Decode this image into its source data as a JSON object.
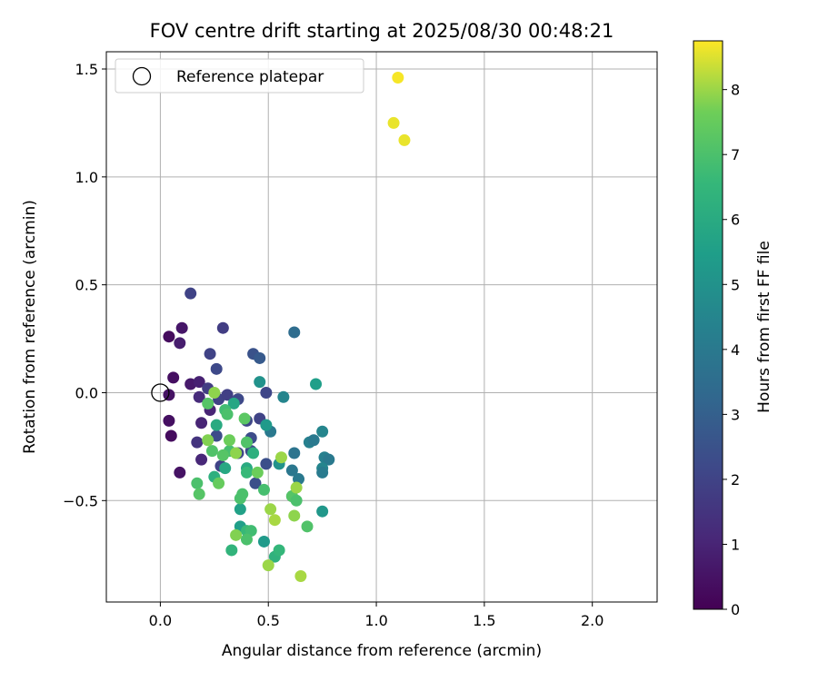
{
  "chart_data": {
    "type": "scatter",
    "title": "FOV centre drift starting at 2025/08/30 00:48:21",
    "xlabel": "Angular distance from reference (arcmin)",
    "ylabel": "Rotation from reference (arcmin)",
    "xlim": [
      -0.25,
      2.3
    ],
    "ylim": [
      -0.97,
      1.58
    ],
    "xticks": [
      0.0,
      0.5,
      1.0,
      1.5,
      2.0
    ],
    "xtick_labels": [
      "0.0",
      "0.5",
      "1.0",
      "1.5",
      "2.0"
    ],
    "yticks": [
      -0.5,
      0.0,
      0.5,
      1.0,
      1.5
    ],
    "ytick_labels": [
      "−0.5",
      "0.0",
      "0.5",
      "1.0",
      "1.5"
    ],
    "grid": true,
    "legend": {
      "position": "upper-left",
      "entries": [
        "Reference platepar"
      ]
    },
    "reference_point": {
      "x": 0.0,
      "y": 0.0,
      "marker": "open-circle",
      "label": "Reference platepar"
    },
    "colorbar": {
      "label": "Hours from first FF file",
      "range": [
        0,
        8.75
      ],
      "ticks": [
        0,
        1,
        2,
        3,
        4,
        5,
        6,
        7,
        8
      ],
      "tick_labels": [
        "0",
        "1",
        "2",
        "3",
        "4",
        "5",
        "6",
        "7",
        "8"
      ],
      "colormap": "viridis"
    },
    "points": [
      {
        "x": 0.04,
        "y": 0.26,
        "c": 0.3
      },
      {
        "x": 0.06,
        "y": 0.07,
        "c": 0.4
      },
      {
        "x": 0.04,
        "y": -0.01,
        "c": 0.5
      },
      {
        "x": 0.04,
        "y": -0.13,
        "c": 0.4
      },
      {
        "x": 0.05,
        "y": -0.2,
        "c": 0.3
      },
      {
        "x": 0.09,
        "y": -0.37,
        "c": 0.5
      },
      {
        "x": 0.1,
        "y": 0.3,
        "c": 0.6
      },
      {
        "x": 0.09,
        "y": 0.23,
        "c": 0.8
      },
      {
        "x": 0.14,
        "y": 0.04,
        "c": 0.7
      },
      {
        "x": 0.18,
        "y": 0.05,
        "c": 0.9
      },
      {
        "x": 0.18,
        "y": -0.02,
        "c": 1.2
      },
      {
        "x": 0.19,
        "y": -0.14,
        "c": 1.0
      },
      {
        "x": 0.19,
        "y": -0.31,
        "c": 1.1
      },
      {
        "x": 0.17,
        "y": -0.23,
        "c": 1.5
      },
      {
        "x": 0.23,
        "y": -0.08,
        "c": 1.0
      },
      {
        "x": 0.22,
        "y": 0.02,
        "c": 1.8
      },
      {
        "x": 0.14,
        "y": 0.46,
        "c": 2.0
      },
      {
        "x": 0.23,
        "y": 0.18,
        "c": 2.0
      },
      {
        "x": 0.26,
        "y": 0.11,
        "c": 2.2
      },
      {
        "x": 0.29,
        "y": 0.3,
        "c": 1.8
      },
      {
        "x": 0.27,
        "y": -0.03,
        "c": 2.0
      },
      {
        "x": 0.31,
        "y": -0.01,
        "c": 1.9
      },
      {
        "x": 0.36,
        "y": -0.03,
        "c": 2.2
      },
      {
        "x": 0.26,
        "y": -0.2,
        "c": 2.3
      },
      {
        "x": 0.28,
        "y": -0.34,
        "c": 2.0
      },
      {
        "x": 0.36,
        "y": -0.28,
        "c": 2.1
      },
      {
        "x": 0.4,
        "y": -0.13,
        "c": 2.1
      },
      {
        "x": 0.42,
        "y": -0.21,
        "c": 2.3
      },
      {
        "x": 0.43,
        "y": 0.18,
        "c": 2.5
      },
      {
        "x": 0.46,
        "y": 0.16,
        "c": 2.8
      },
      {
        "x": 0.49,
        "y": 0.0,
        "c": 2.1
      },
      {
        "x": 0.46,
        "y": -0.12,
        "c": 2.0
      },
      {
        "x": 0.49,
        "y": -0.33,
        "c": 2.4
      },
      {
        "x": 0.44,
        "y": -0.42,
        "c": 2.4
      },
      {
        "x": 0.42,
        "y": -0.27,
        "c": 2.2
      },
      {
        "x": 0.62,
        "y": 0.28,
        "c": 3.5
      },
      {
        "x": 0.57,
        "y": -0.02,
        "c": 4.5
      },
      {
        "x": 0.51,
        "y": -0.18,
        "c": 4.0
      },
      {
        "x": 0.62,
        "y": -0.28,
        "c": 3.8
      },
      {
        "x": 0.61,
        "y": -0.36,
        "c": 3.9
      },
      {
        "x": 0.64,
        "y": -0.4,
        "c": 4.0
      },
      {
        "x": 0.61,
        "y": -0.48,
        "c": 3.7
      },
      {
        "x": 0.69,
        "y": -0.23,
        "c": 4.3
      },
      {
        "x": 0.71,
        "y": -0.22,
        "c": 4.0
      },
      {
        "x": 0.75,
        "y": -0.18,
        "c": 4.5
      },
      {
        "x": 0.76,
        "y": -0.3,
        "c": 4.3
      },
      {
        "x": 0.78,
        "y": -0.31,
        "c": 4.0
      },
      {
        "x": 0.75,
        "y": -0.35,
        "c": 4.5
      },
      {
        "x": 0.75,
        "y": -0.37,
        "c": 4.1
      },
      {
        "x": 0.72,
        "y": 0.04,
        "c": 5.5
      },
      {
        "x": 0.46,
        "y": 0.05,
        "c": 5.0
      },
      {
        "x": 0.49,
        "y": -0.15,
        "c": 5.3
      },
      {
        "x": 0.55,
        "y": -0.33,
        "c": 5.0
      },
      {
        "x": 0.75,
        "y": -0.55,
        "c": 5.2
      },
      {
        "x": 0.48,
        "y": -0.69,
        "c": 5.3
      },
      {
        "x": 0.37,
        "y": -0.62,
        "c": 5.5
      },
      {
        "x": 0.37,
        "y": -0.54,
        "c": 5.6
      },
      {
        "x": 0.34,
        "y": -0.05,
        "c": 5.8
      },
      {
        "x": 0.26,
        "y": -0.15,
        "c": 6.0
      },
      {
        "x": 0.3,
        "y": -0.35,
        "c": 5.9
      },
      {
        "x": 0.25,
        "y": -0.39,
        "c": 6.2
      },
      {
        "x": 0.4,
        "y": -0.35,
        "c": 6.0
      },
      {
        "x": 0.43,
        "y": -0.28,
        "c": 6.2
      },
      {
        "x": 0.53,
        "y": -0.76,
        "c": 6.3
      },
      {
        "x": 0.55,
        "y": -0.73,
        "c": 6.5
      },
      {
        "x": 0.33,
        "y": -0.73,
        "c": 6.4
      },
      {
        "x": 0.4,
        "y": -0.64,
        "c": 6.6
      },
      {
        "x": 0.42,
        "y": -0.64,
        "c": 6.8
      },
      {
        "x": 0.4,
        "y": -0.68,
        "c": 7.0
      },
      {
        "x": 0.37,
        "y": -0.49,
        "c": 7.0
      },
      {
        "x": 0.48,
        "y": -0.45,
        "c": 6.9
      },
      {
        "x": 0.4,
        "y": -0.23,
        "c": 7.1
      },
      {
        "x": 0.4,
        "y": -0.37,
        "c": 6.6
      },
      {
        "x": 0.32,
        "y": -0.27,
        "c": 6.9
      },
      {
        "x": 0.29,
        "y": -0.29,
        "c": 7.2
      },
      {
        "x": 0.24,
        "y": -0.27,
        "c": 7.1
      },
      {
        "x": 0.3,
        "y": -0.08,
        "c": 6.8
      },
      {
        "x": 0.31,
        "y": -0.1,
        "c": 7.0
      },
      {
        "x": 0.22,
        "y": -0.05,
        "c": 7.2
      },
      {
        "x": 0.39,
        "y": -0.12,
        "c": 7.3
      },
      {
        "x": 0.17,
        "y": -0.42,
        "c": 7.0
      },
      {
        "x": 0.18,
        "y": -0.47,
        "c": 7.2
      },
      {
        "x": 0.27,
        "y": -0.42,
        "c": 7.5
      },
      {
        "x": 0.38,
        "y": -0.47,
        "c": 7.0
      },
      {
        "x": 0.61,
        "y": -0.48,
        "c": 7.2
      },
      {
        "x": 0.63,
        "y": -0.5,
        "c": 7.0
      },
      {
        "x": 0.68,
        "y": -0.62,
        "c": 7.1
      },
      {
        "x": 0.45,
        "y": -0.37,
        "c": 7.6
      },
      {
        "x": 0.22,
        "y": -0.22,
        "c": 7.8
      },
      {
        "x": 0.25,
        "y": 0.0,
        "c": 7.9
      },
      {
        "x": 0.32,
        "y": -0.22,
        "c": 7.6
      },
      {
        "x": 0.35,
        "y": -0.28,
        "c": 7.9
      },
      {
        "x": 0.35,
        "y": -0.66,
        "c": 7.8
      },
      {
        "x": 0.51,
        "y": -0.54,
        "c": 8.0
      },
      {
        "x": 0.53,
        "y": -0.59,
        "c": 8.1
      },
      {
        "x": 0.5,
        "y": -0.8,
        "c": 8.0
      },
      {
        "x": 0.56,
        "y": -0.3,
        "c": 8.0
      },
      {
        "x": 0.62,
        "y": -0.57,
        "c": 7.9
      },
      {
        "x": 0.63,
        "y": -0.44,
        "c": 8.0
      },
      {
        "x": 0.65,
        "y": -0.85,
        "c": 8.1
      },
      {
        "x": 1.1,
        "y": 1.46,
        "c": 8.7
      },
      {
        "x": 1.08,
        "y": 1.25,
        "c": 8.6
      },
      {
        "x": 1.13,
        "y": 1.17,
        "c": 8.6
      }
    ]
  }
}
